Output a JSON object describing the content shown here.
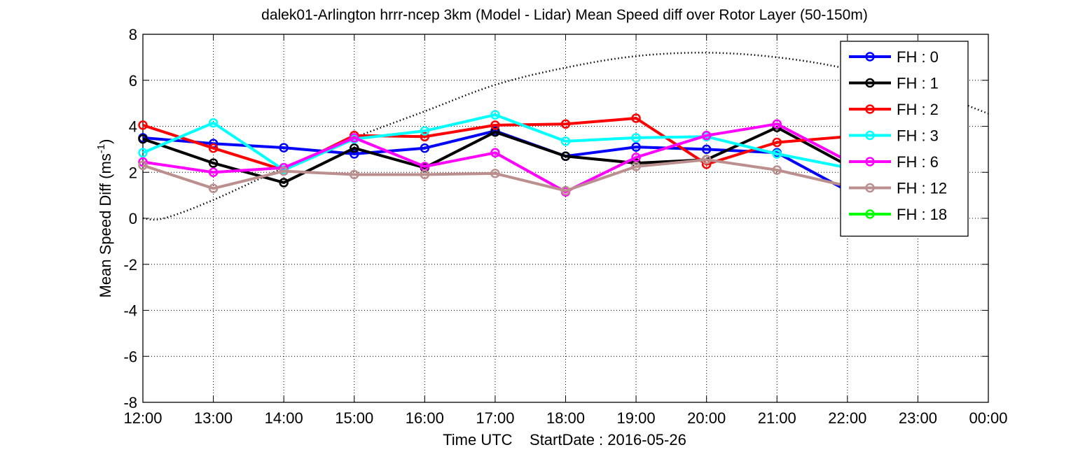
{
  "chart_data": {
    "type": "line",
    "title": "dalek01-Arlington hrrr-ncep 3km (Model - Lidar) Mean Speed diff over Rotor Layer (50-150m)",
    "ylabel_main": "Mean Speed Diff (ms",
    "ylabel_sup": "-1",
    "ylabel_close": ")",
    "xlabel": "Time UTC    StartDate : 2016-05-26",
    "ylim": [
      -8,
      8
    ],
    "yticks": [
      "-8",
      "-6",
      "-4",
      "-2",
      "0",
      "2",
      "4",
      "6",
      "8"
    ],
    "xticks": [
      "12:00",
      "13:00",
      "14:00",
      "15:00",
      "16:00",
      "17:00",
      "18:00",
      "19:00",
      "20:00",
      "21:00",
      "22:00",
      "23:00",
      "00:00"
    ],
    "grid": true,
    "legend_position": "top-right",
    "series": [
      {
        "name": "FH : 0",
        "color": "#0000ff",
        "values": [
          3.5,
          3.25,
          3.07,
          2.8,
          3.05,
          3.8,
          2.7,
          3.1,
          3.0,
          2.85,
          1.2
        ]
      },
      {
        "name": "FH : 1",
        "color": "#000000",
        "values": [
          3.45,
          2.4,
          1.55,
          3.05,
          2.2,
          3.75,
          2.7,
          2.4,
          2.55,
          3.95,
          2.3
        ]
      },
      {
        "name": "FH : 2",
        "color": "#ff0000",
        "values": [
          4.05,
          3.05,
          2.1,
          3.6,
          3.55,
          4.05,
          4.1,
          4.35,
          2.35,
          3.3,
          3.55
        ]
      },
      {
        "name": "FH : 3",
        "color": "#00ffff",
        "values": [
          2.85,
          4.15,
          2.1,
          3.45,
          3.8,
          4.5,
          3.35,
          3.5,
          3.55,
          2.8,
          2.2
        ]
      },
      {
        "name": "FH : 6",
        "color": "#ff00ff",
        "values": [
          2.45,
          2.0,
          2.2,
          3.5,
          2.25,
          2.85,
          1.15,
          2.65,
          3.6,
          4.1,
          2.5
        ]
      },
      {
        "name": "FH : 12",
        "color": "#bc8f8f",
        "values": [
          2.3,
          1.3,
          2.05,
          1.9,
          1.9,
          1.95,
          1.2,
          2.25,
          2.55,
          2.1,
          1.4
        ]
      },
      {
        "name": "FH : 18",
        "color": "#00ff00",
        "values": []
      }
    ],
    "reference_curve": {
      "style": "dotted",
      "color": "#000000",
      "x": [
        0,
        0.3,
        1,
        2,
        3,
        4,
        5,
        6,
        7,
        8,
        9,
        10,
        11,
        12
      ],
      "values": [
        0,
        0,
        0.8,
        2.2,
        3.5,
        4.65,
        5.8,
        6.55,
        7.05,
        7.2,
        7.0,
        6.5,
        5.7,
        4.55
      ]
    }
  }
}
